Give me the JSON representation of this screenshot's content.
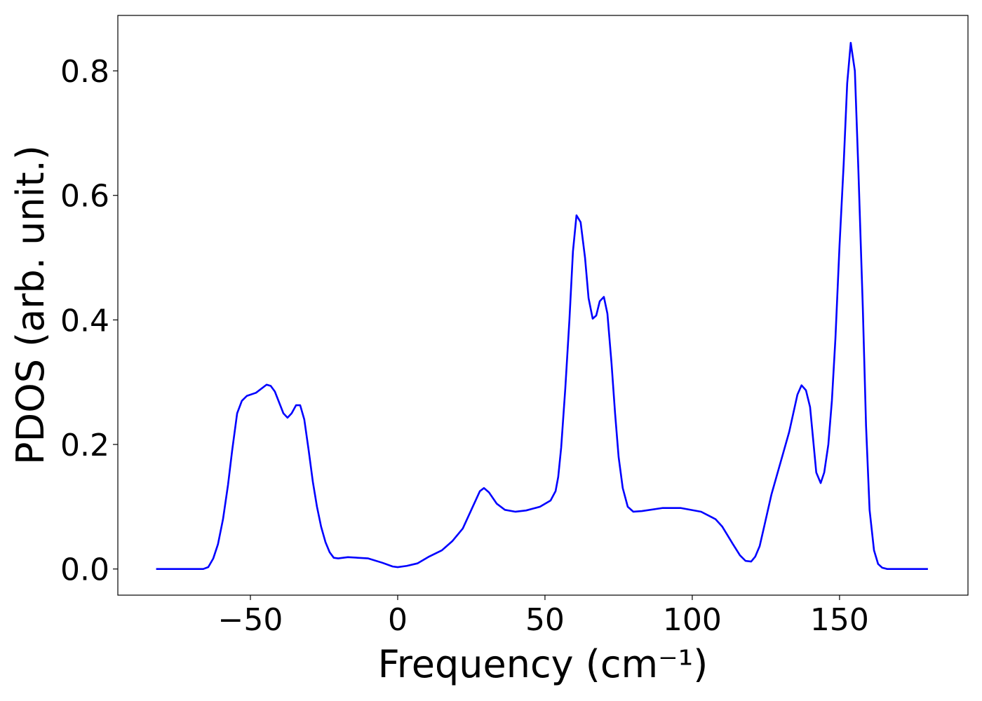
{
  "chart_data": {
    "type": "line",
    "xlabel": "Frequency (cm⁻¹)",
    "ylabel": "PDOS (arb. unit.)",
    "xlim": [
      -95,
      193.6
    ],
    "ylim": [
      -0.042,
      0.889
    ],
    "xticks": [
      {
        "value": -50,
        "label": "−50"
      },
      0,
      50,
      100,
      150
    ],
    "yticks": [
      {
        "value": 0,
        "label": "0.0"
      },
      0.2,
      0.4,
      0.6,
      0.8
    ],
    "grid": false,
    "series": [
      {
        "color": "#0000ff",
        "x": [
          -82,
          -66,
          -64.3,
          -62.6,
          -61,
          -59.3,
          -57.6,
          -56.2,
          -54.5,
          -52.9,
          -51.2,
          -48.1,
          -44.5,
          -43.1,
          -41.7,
          -38.8,
          -37.4,
          -36,
          -34.5,
          -33.1,
          -31.7,
          -30.2,
          -28.8,
          -27.4,
          -26,
          -24.5,
          -23.1,
          -21.7,
          -20.2,
          -16.9,
          -10,
          -5.2,
          -1.7,
          0,
          3.1,
          6.7,
          10.7,
          15,
          18.6,
          22.1,
          25,
          27.9,
          29.3,
          31,
          33.6,
          36.4,
          40,
          43.6,
          48.3,
          51.9,
          53.6,
          54.5,
          55.5,
          56.9,
          58.3,
          59.5,
          60.7,
          62.1,
          63.6,
          64.8,
          66.2,
          67.4,
          68.6,
          70,
          71.2,
          72.6,
          73.8,
          75,
          76.4,
          78.1,
          80,
          82.9,
          90,
          96,
          103,
          107.9,
          110.2,
          113.8,
          116.2,
          118.1,
          120,
          121.4,
          122.9,
          124.5,
          126.9,
          129.3,
          132.9,
          135.7,
          137.1,
          138.6,
          140,
          141.2,
          142.1,
          143.6,
          144.8,
          146.2,
          147.4,
          148.6,
          150,
          151.4,
          152.6,
          153.8,
          155.2,
          156.4,
          157.9,
          159,
          160.2,
          161.7,
          163.1,
          164.5,
          166.2,
          180
        ],
        "values": [
          0,
          0,
          0.003,
          0.017,
          0.04,
          0.08,
          0.135,
          0.19,
          0.25,
          0.27,
          0.278,
          0.283,
          0.296,
          0.294,
          0.285,
          0.25,
          0.243,
          0.25,
          0.263,
          0.263,
          0.24,
          0.19,
          0.14,
          0.1,
          0.068,
          0.043,
          0.027,
          0.018,
          0.017,
          0.019,
          0.017,
          0.01,
          0.004,
          0.003,
          0.005,
          0.009,
          0.02,
          0.03,
          0.045,
          0.065,
          0.095,
          0.125,
          0.13,
          0.123,
          0.105,
          0.095,
          0.092,
          0.094,
          0.1,
          0.11,
          0.125,
          0.148,
          0.195,
          0.29,
          0.4,
          0.51,
          0.568,
          0.557,
          0.5,
          0.435,
          0.402,
          0.407,
          0.43,
          0.437,
          0.41,
          0.33,
          0.25,
          0.18,
          0.13,
          0.1,
          0.092,
          0.093,
          0.098,
          0.098,
          0.092,
          0.08,
          0.068,
          0.04,
          0.022,
          0.013,
          0.012,
          0.02,
          0.037,
          0.07,
          0.12,
          0.16,
          0.22,
          0.28,
          0.295,
          0.287,
          0.26,
          0.2,
          0.155,
          0.138,
          0.155,
          0.2,
          0.27,
          0.37,
          0.52,
          0.65,
          0.78,
          0.845,
          0.8,
          0.64,
          0.42,
          0.23,
          0.095,
          0.03,
          0.008,
          0.002,
          0,
          0
        ]
      }
    ]
  }
}
